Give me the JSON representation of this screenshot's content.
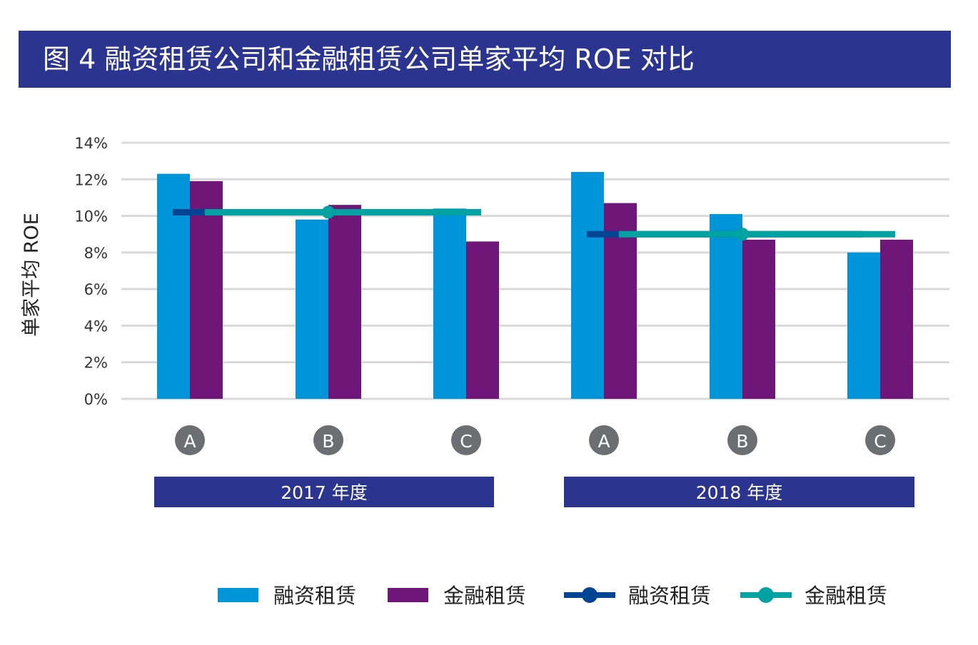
{
  "title": "图 4  融资租赁公司和金融租赁公司单家平均 ROE 对比",
  "chart_data": {
    "type": "bar",
    "title": "图 4  融资租赁公司和金融租赁公司单家平均 ROE 对比",
    "ylabel": "单家平均 ROE",
    "ylim": [
      0,
      14
    ],
    "yticks": [
      "0%",
      "2%",
      "4%",
      "6%",
      "8%",
      "10%",
      "12%",
      "14%"
    ],
    "grid": true,
    "legend_position": "bottom",
    "groups": [
      {
        "label": "2017 年度",
        "categories": [
          "A",
          "B",
          "C"
        ]
      },
      {
        "label": "2018 年度",
        "categories": [
          "A",
          "B",
          "C"
        ]
      }
    ],
    "series": [
      {
        "name": "融资租赁",
        "type": "bar",
        "color": "#0095d9",
        "values": [
          12.3,
          9.8,
          10.4,
          12.4,
          10.1,
          8.0
        ]
      },
      {
        "name": "金融租赁",
        "type": "bar",
        "color": "#6e1778",
        "values": [
          11.9,
          10.6,
          8.6,
          10.7,
          8.7,
          8.7
        ]
      },
      {
        "name": "融资租赁",
        "type": "line",
        "color": "#004494",
        "values": [
          10.2,
          9.0
        ]
      },
      {
        "name": "金融租赁",
        "type": "line",
        "color": "#00a3a1",
        "values": [
          10.2,
          9.0
        ]
      }
    ]
  }
}
